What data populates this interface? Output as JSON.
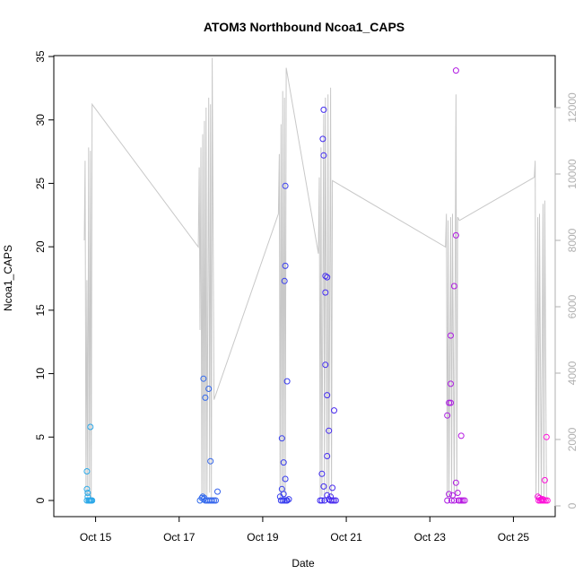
{
  "chart_data": {
    "type": "scatter",
    "title": "ATOM3 Northbound Ncoa1_CAPS",
    "xlabel": "Date",
    "ylabel": "Ncoa1_CAPS",
    "xlim": [
      "2023-10-14T00:00:00",
      "2023-10-26T00:00:00"
    ],
    "ylim": [
      0,
      35
    ],
    "y_right_lim": [
      0,
      12000
    ],
    "x_tick_labels": [
      "Oct 15",
      "Oct 17",
      "Oct 19",
      "Oct 21",
      "Oct 23",
      "Oct 25"
    ],
    "y_tick_labels": [
      "0",
      "5",
      "10",
      "15",
      "20",
      "25",
      "30",
      "35"
    ],
    "y_right_tick_labels": [
      "0",
      "2000",
      "4000",
      "6000",
      "8000",
      "10000",
      "12000"
    ],
    "grid": false,
    "colors": {
      "points_start": "#2aa9e8",
      "points_mid": "#3b2cf0",
      "points_end": "#ff10d8",
      "line": "#c8c8c8",
      "axis": "#000000",
      "right_axis": "#b0b0b0"
    },
    "series": [
      {
        "mark": "point",
        "axis": "left",
        "points": [
          [
            "2023-10-14T19:00:00",
            2.3
          ],
          [
            "2023-10-14T19:00:00",
            0.9
          ],
          [
            "2023-10-14T19:30:00",
            0.6
          ],
          [
            "2023-10-14T19:30:00",
            0.3
          ],
          [
            "2023-10-14T19:00:00",
            0.0
          ],
          [
            "2023-10-14T20:00:00",
            0.0
          ],
          [
            "2023-10-14T20:30:00",
            0.0
          ],
          [
            "2023-10-14T21:00:00",
            0.0
          ],
          [
            "2023-10-14T21:30:00",
            0.0
          ],
          [
            "2023-10-14T22:00:00",
            0.0
          ],
          [
            "2023-10-14T21:00:00",
            5.8
          ],
          [
            "2023-10-17T13:00:00",
            0.2
          ],
          [
            "2023-10-17T13:30:00",
            0.3
          ],
          [
            "2023-10-17T14:00:00",
            0.1
          ],
          [
            "2023-10-17T14:30:00",
            0.2
          ],
          [
            "2023-10-17T12:00:00",
            0.0
          ],
          [
            "2023-10-17T15:00:00",
            0.0
          ],
          [
            "2023-10-17T16:00:00",
            0.0
          ],
          [
            "2023-10-17T17:00:00",
            0.0
          ],
          [
            "2023-10-17T18:00:00",
            0.0
          ],
          [
            "2023-10-17T19:00:00",
            0.0
          ],
          [
            "2023-10-17T20:00:00",
            0.0
          ],
          [
            "2023-10-17T21:00:00",
            0.0
          ],
          [
            "2023-10-17T14:00:00",
            9.6
          ],
          [
            "2023-10-17T15:00:00",
            8.1
          ],
          [
            "2023-10-17T17:00:00",
            8.8
          ],
          [
            "2023-10-17T18:00:00",
            3.1
          ],
          [
            "2023-10-17T22:00:00",
            0.7
          ],
          [
            "2023-10-19T11:00:00",
            4.9
          ],
          [
            "2023-10-19T12:00:00",
            3.0
          ],
          [
            "2023-10-19T13:00:00",
            1.7
          ],
          [
            "2023-10-19T11:00:00",
            0.9
          ],
          [
            "2023-10-19T12:00:00",
            0.5
          ],
          [
            "2023-10-19T10:00:00",
            0.3
          ],
          [
            "2023-10-19T10:30:00",
            0.0
          ],
          [
            "2023-10-19T11:30:00",
            0.0
          ],
          [
            "2023-10-19T12:30:00",
            0.0
          ],
          [
            "2023-10-19T13:30:00",
            0.0
          ],
          [
            "2023-10-19T14:00:00",
            0.0
          ],
          [
            "2023-10-19T15:00:00",
            0.1
          ],
          [
            "2023-10-19T13:00:00",
            24.8
          ],
          [
            "2023-10-19T13:00:00",
            18.5
          ],
          [
            "2023-10-19T12:30:00",
            17.3
          ],
          [
            "2023-10-19T14:00:00",
            9.4
          ],
          [
            "2023-10-20T11:00:00",
            30.8
          ],
          [
            "2023-10-20T10:30:00",
            28.5
          ],
          [
            "2023-10-20T11:00:00",
            27.2
          ],
          [
            "2023-10-20T12:00:00",
            17.7
          ],
          [
            "2023-10-20T13:00:00",
            17.6
          ],
          [
            "2023-10-20T12:00:00",
            16.4
          ],
          [
            "2023-10-20T12:00:00",
            10.7
          ],
          [
            "2023-10-20T13:00:00",
            8.3
          ],
          [
            "2023-10-20T14:00:00",
            5.5
          ],
          [
            "2023-10-20T13:00:00",
            3.5
          ],
          [
            "2023-10-20T10:00:00",
            2.1
          ],
          [
            "2023-10-20T11:00:00",
            1.1
          ],
          [
            "2023-10-20T17:00:00",
            7.1
          ],
          [
            "2023-10-20T16:00:00",
            1.0
          ],
          [
            "2023-10-20T13:00:00",
            0.4
          ],
          [
            "2023-10-20T15:00:00",
            0.3
          ],
          [
            "2023-10-20T09:00:00",
            0.0
          ],
          [
            "2023-10-20T10:00:00",
            0.0
          ],
          [
            "2023-10-20T11:30:00",
            0.0
          ],
          [
            "2023-10-20T14:00:00",
            0.1
          ],
          [
            "2023-10-20T15:00:00",
            0.0
          ],
          [
            "2023-10-20T16:00:00",
            0.0
          ],
          [
            "2023-10-20T17:00:00",
            0.0
          ],
          [
            "2023-10-20T18:00:00",
            0.0
          ],
          [
            "2023-10-23T11:00:00",
            7.7
          ],
          [
            "2023-10-23T12:00:00",
            7.7
          ],
          [
            "2023-10-23T10:00:00",
            6.7
          ],
          [
            "2023-10-23T12:00:00",
            9.2
          ],
          [
            "2023-10-23T12:00:00",
            13.0
          ],
          [
            "2023-10-23T14:00:00",
            16.9
          ],
          [
            "2023-10-23T15:00:00",
            20.9
          ],
          [
            "2023-10-23T15:00:00",
            33.9
          ],
          [
            "2023-10-23T18:00:00",
            5.1
          ],
          [
            "2023-10-23T15:00:00",
            1.4
          ],
          [
            "2023-10-23T11:00:00",
            0.5
          ],
          [
            "2023-10-23T13:00:00",
            0.4
          ],
          [
            "2023-10-23T16:00:00",
            0.6
          ],
          [
            "2023-10-23T10:00:00",
            0.0
          ],
          [
            "2023-10-23T12:30:00",
            0.0
          ],
          [
            "2023-10-23T14:00:00",
            0.0
          ],
          [
            "2023-10-23T16:30:00",
            0.0
          ],
          [
            "2023-10-23T17:00:00",
            0.0
          ],
          [
            "2023-10-23T18:00:00",
            0.0
          ],
          [
            "2023-10-23T19:00:00",
            0.0
          ],
          [
            "2023-10-23T20:00:00",
            0.0
          ],
          [
            "2023-10-25T14:00:00",
            0.3
          ],
          [
            "2023-10-25T15:00:00",
            0.2
          ],
          [
            "2023-10-25T16:00:00",
            0.1
          ],
          [
            "2023-10-25T17:00:00",
            0.1
          ],
          [
            "2023-10-25T18:00:00",
            1.6
          ],
          [
            "2023-10-25T19:00:00",
            5.0
          ],
          [
            "2023-10-25T14:30:00",
            0.0
          ],
          [
            "2023-10-25T15:30:00",
            0.0
          ],
          [
            "2023-10-25T16:30:00",
            0.0
          ],
          [
            "2023-10-25T17:30:00",
            0.0
          ],
          [
            "2023-10-25T18:30:00",
            0.0
          ],
          [
            "2023-10-25T19:30:00",
            0.0
          ]
        ]
      },
      {
        "mark": "line",
        "axis": "right",
        "points": [
          [
            "2023-10-14T17:30:00",
            8000
          ],
          [
            "2023-10-14T18:00:00",
            10400
          ],
          [
            "2023-10-14T18:30:00",
            300
          ],
          [
            "2023-10-14T19:00:00",
            6800
          ],
          [
            "2023-10-14T19:30:00",
            200
          ],
          [
            "2023-10-14T20:00:00",
            10800
          ],
          [
            "2023-10-14T20:30:00",
            300
          ],
          [
            "2023-10-14T21:00:00",
            10700
          ],
          [
            "2023-10-14T21:30:00",
            200
          ],
          [
            "2023-10-14T22:00:00",
            12100
          ],
          [
            "2023-10-17T11:00:00",
            7800
          ],
          [
            "2023-10-17T11:30:00",
            10200
          ],
          [
            "2023-10-17T12:00:00",
            5300
          ],
          [
            "2023-10-17T12:30:00",
            10800
          ],
          [
            "2023-10-17T13:00:00",
            200
          ],
          [
            "2023-10-17T13:30:00",
            11200
          ],
          [
            "2023-10-17T14:00:00",
            300
          ],
          [
            "2023-10-17T14:30:00",
            11600
          ],
          [
            "2023-10-17T15:00:00",
            200
          ],
          [
            "2023-10-17T15:30:00",
            12000
          ],
          [
            "2023-10-17T16:00:00",
            300
          ],
          [
            "2023-10-17T17:00:00",
            12300
          ],
          [
            "2023-10-17T17:30:00",
            400
          ],
          [
            "2023-10-17T18:00:00",
            12100
          ],
          [
            "2023-10-17T18:30:00",
            200
          ],
          [
            "2023-10-17T19:00:00",
            13500
          ],
          [
            "2023-10-17T20:00:00",
            3200
          ],
          [
            "2023-10-19T09:00:00",
            8800
          ],
          [
            "2023-10-19T09:30:00",
            10600
          ],
          [
            "2023-10-19T10:00:00",
            200
          ],
          [
            "2023-10-19T10:30:00",
            11500
          ],
          [
            "2023-10-19T11:00:00",
            300
          ],
          [
            "2023-10-19T11:30:00",
            12500
          ],
          [
            "2023-10-19T12:00:00",
            400
          ],
          [
            "2023-10-19T12:30:00",
            12300
          ],
          [
            "2023-10-19T13:00:00",
            200
          ],
          [
            "2023-10-19T13:30:00",
            13200
          ],
          [
            "2023-10-20T08:00:00",
            7600
          ],
          [
            "2023-10-20T08:30:00",
            9900
          ],
          [
            "2023-10-20T09:00:00",
            200
          ],
          [
            "2023-10-20T09:30:00",
            10800
          ],
          [
            "2023-10-20T10:00:00",
            300
          ],
          [
            "2023-10-20T11:00:00",
            11800
          ],
          [
            "2023-10-20T11:30:00",
            200
          ],
          [
            "2023-10-20T12:00:00",
            12300
          ],
          [
            "2023-10-20T13:00:00",
            400
          ],
          [
            "2023-10-20T13:30:00",
            12400
          ],
          [
            "2023-10-20T14:00:00",
            300
          ],
          [
            "2023-10-20T15:00:00",
            12600
          ],
          [
            "2023-10-20T15:30:00",
            300
          ],
          [
            "2023-10-20T16:00:00",
            9800
          ],
          [
            "2023-10-23T09:00:00",
            7800
          ],
          [
            "2023-10-23T09:30:00",
            8800
          ],
          [
            "2023-10-23T10:00:00",
            200
          ],
          [
            "2023-10-23T10:30:00",
            8600
          ],
          [
            "2023-10-23T11:00:00",
            300
          ],
          [
            "2023-10-23T12:00:00",
            8700
          ],
          [
            "2023-10-23T12:30:00",
            200
          ],
          [
            "2023-10-23T13:00:00",
            8800
          ],
          [
            "2023-10-23T14:00:00",
            400
          ],
          [
            "2023-10-23T15:00:00",
            12400
          ],
          [
            "2023-10-23T15:30:00",
            300
          ],
          [
            "2023-10-23T16:00:00",
            8700
          ],
          [
            "2023-10-23T17:00:00",
            8600
          ],
          [
            "2023-10-25T12:00:00",
            9900
          ],
          [
            "2023-10-25T12:30:00",
            10400
          ],
          [
            "2023-10-25T13:00:00",
            200
          ],
          [
            "2023-10-25T14:00:00",
            8700
          ],
          [
            "2023-10-25T14:30:00",
            300
          ],
          [
            "2023-10-25T15:00:00",
            8800
          ],
          [
            "2023-10-25T16:00:00",
            200
          ],
          [
            "2023-10-25T17:00:00",
            9100
          ],
          [
            "2023-10-25T17:30:00",
            300
          ],
          [
            "2023-10-25T18:00:00",
            9200
          ],
          [
            "2023-10-25T19:00:00",
            200
          ]
        ]
      }
    ]
  }
}
